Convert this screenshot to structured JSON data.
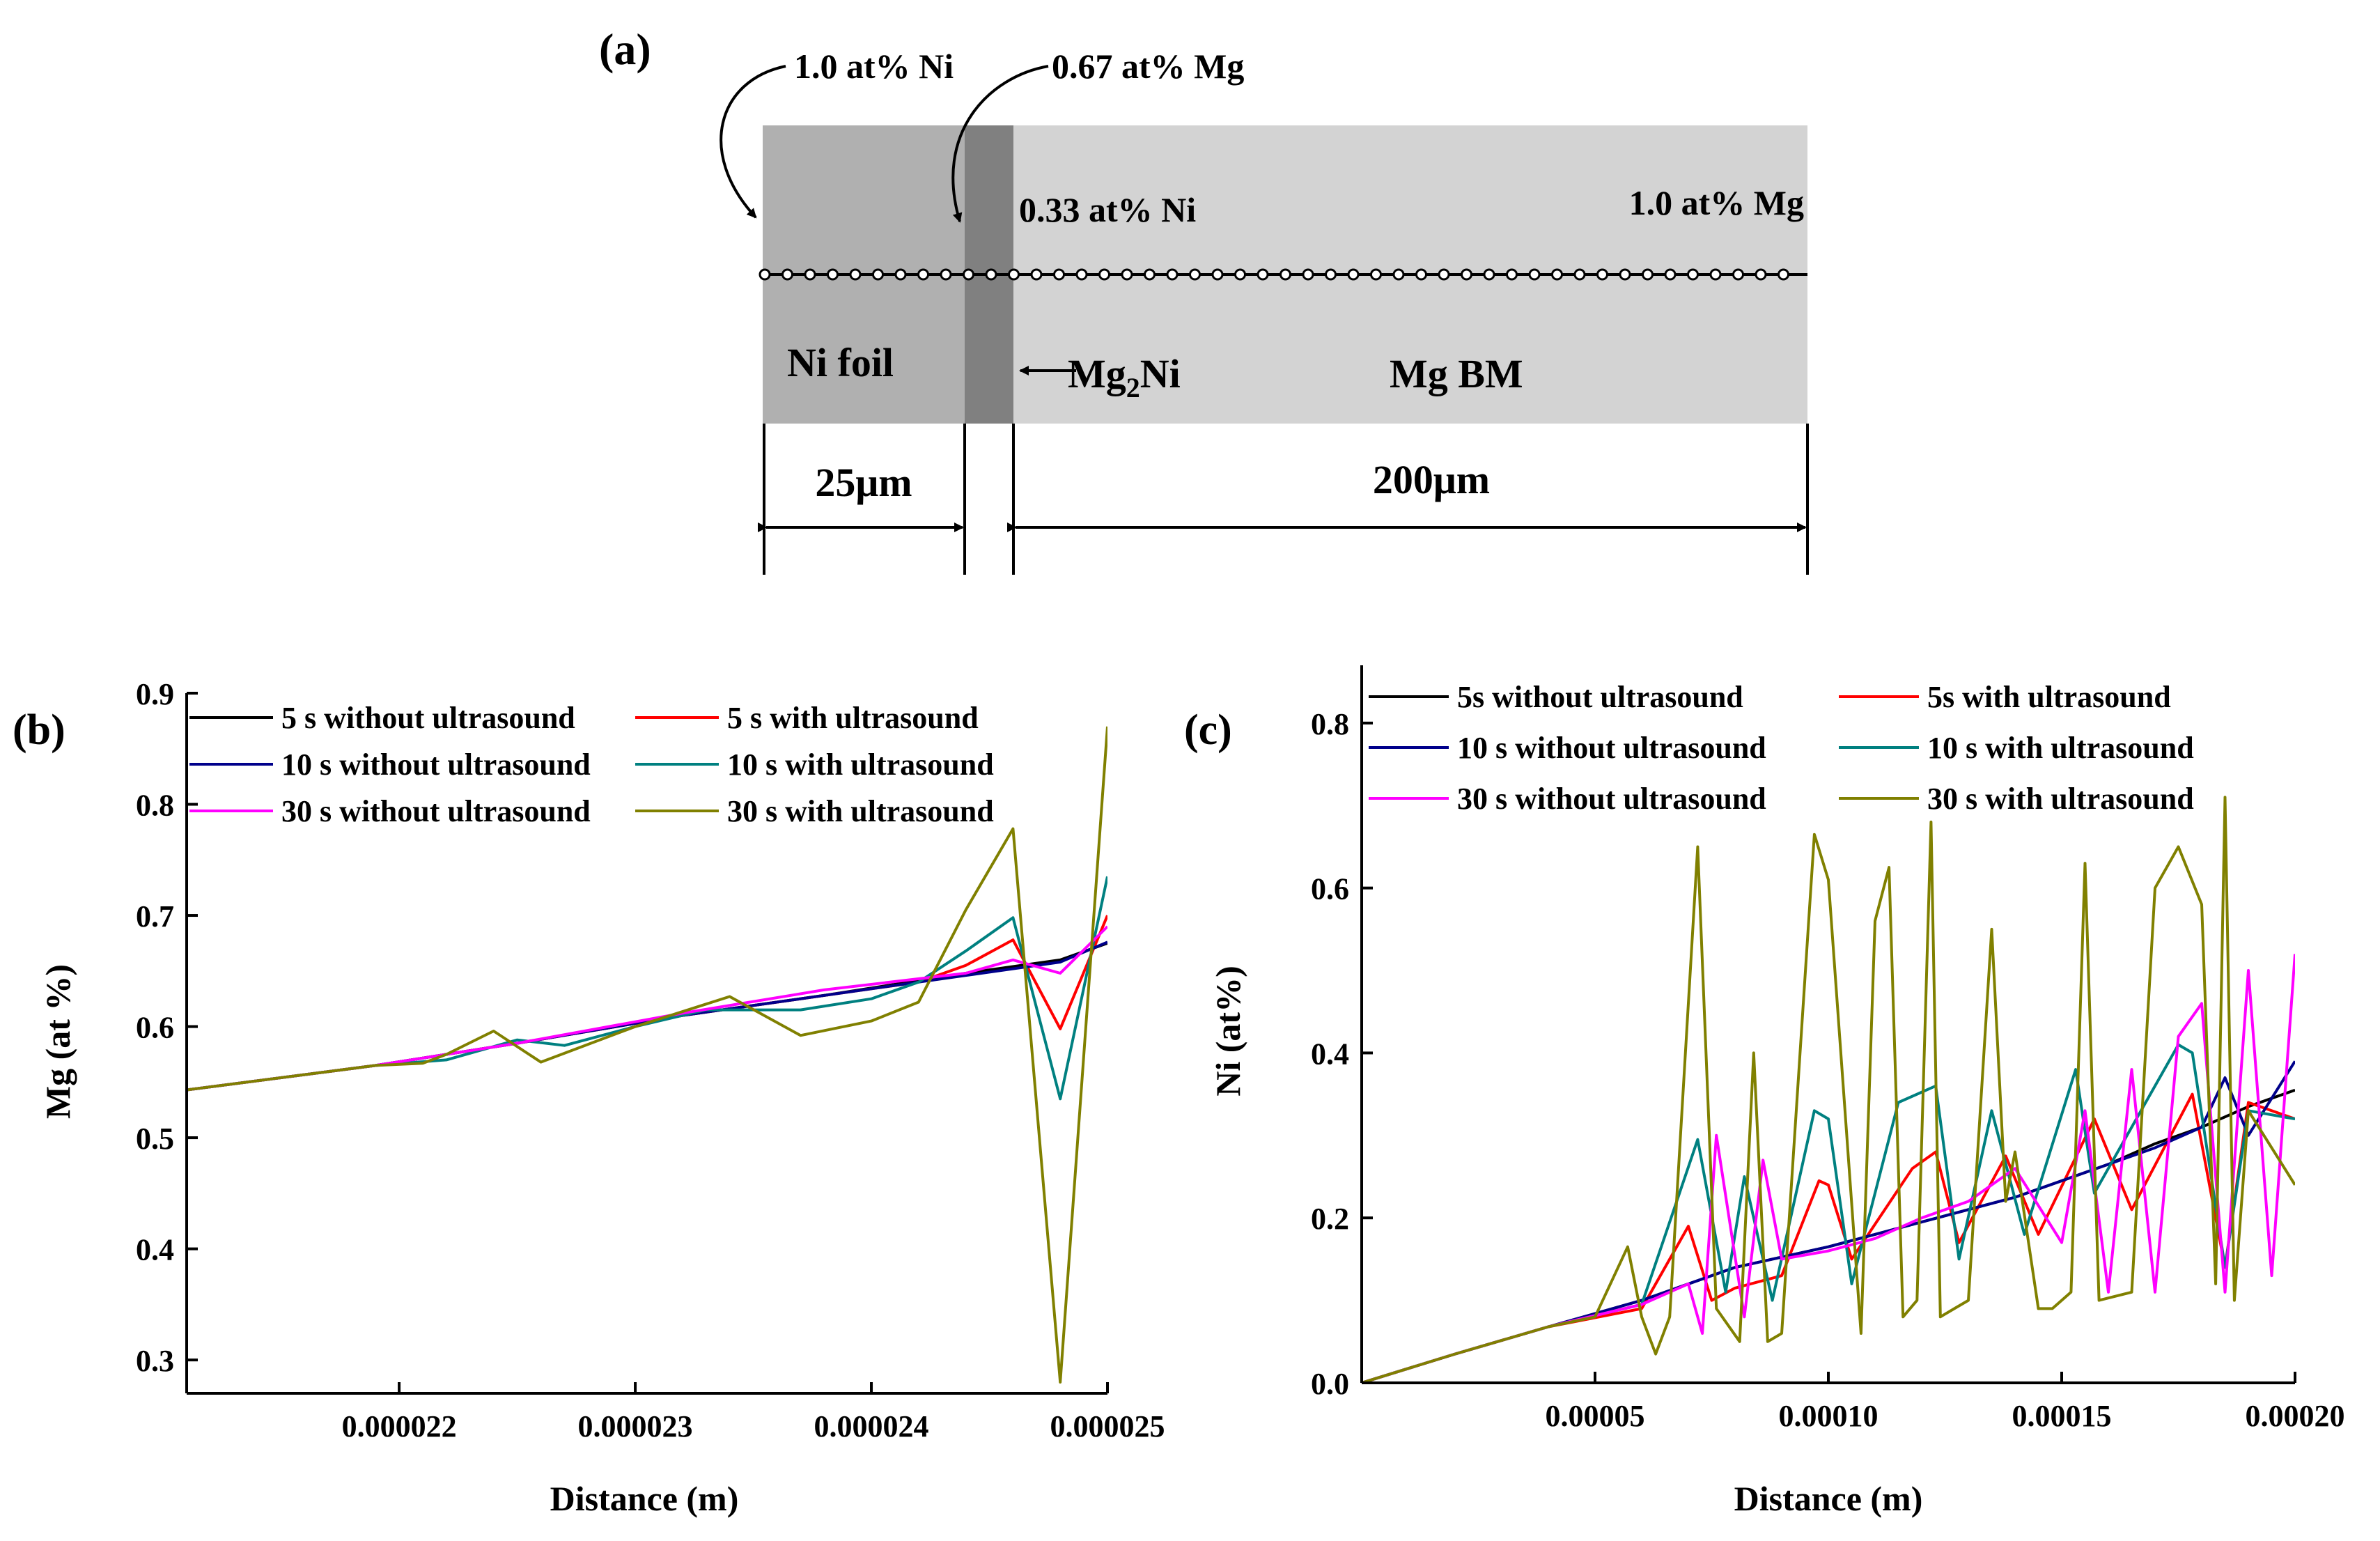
{
  "colors": {
    "black": "#000000",
    "red": "#ff0000",
    "navy": "#00008b",
    "teal": "#008080",
    "magenta": "#ff00ff",
    "olive": "#808000",
    "foil": "#b0b0b0",
    "layer": "#808080",
    "bm": "#d3d3d3"
  },
  "schematic": {
    "panel_label": "(a)",
    "label_ni_top": "1.0 at% Ni",
    "label_mg_top": "0.67 at% Mg",
    "label_ni_033": "0.33 at% Ni",
    "label_mg_10": "1.0 at% Mg",
    "ni_foil": "Ni foil",
    "mg2ni_prefix": "Mg",
    "mg2ni_sub": "2",
    "mg2ni_suffix": "Ni",
    "mg_bm": "Mg BM",
    "dim_25": "25μm",
    "dim_200": "200μm"
  },
  "chart_data": [
    {
      "panel_label": "(b)",
      "type": "line",
      "xlabel": "Distance (m)",
      "ylabel": "Mg (at %)",
      "xlim": [
        2.11e-05,
        2.5e-05
      ],
      "ylim": [
        0.27,
        0.9
      ],
      "xticks": [
        2.2e-05,
        2.3e-05,
        2.4e-05,
        2.5e-05
      ],
      "xtick_labels": [
        "0.000022",
        "0.000023",
        "0.000024",
        "0.000025"
      ],
      "yticks": [
        0.3,
        0.4,
        0.5,
        0.6,
        0.7,
        0.8,
        0.9
      ],
      "ytick_labels": [
        "0.3",
        "0.4",
        "0.5",
        "0.6",
        "0.7",
        "0.8",
        "0.9"
      ],
      "legend_columns": 2,
      "legend_placement": "top-left",
      "series": [
        {
          "name": "5 s without ultrasound",
          "color": "#000000",
          "x": [
            2.11e-05,
            2.19e-05,
            2.25e-05,
            2.32e-05,
            2.38e-05,
            2.44e-05,
            2.48e-05,
            2.5e-05
          ],
          "y": [
            0.543,
            0.565,
            0.585,
            0.61,
            0.628,
            0.648,
            0.66,
            0.675
          ]
        },
        {
          "name": "5 s with ultrasound",
          "color": "#ff0000",
          "x": [
            2.11e-05,
            2.19e-05,
            2.25e-05,
            2.32e-05,
            2.38e-05,
            2.42e-05,
            2.44e-05,
            2.46e-05,
            2.48e-05,
            2.5e-05
          ],
          "y": [
            0.543,
            0.565,
            0.585,
            0.61,
            0.628,
            0.64,
            0.655,
            0.678,
            0.598,
            0.7
          ]
        },
        {
          "name": "10 s without ultrasound",
          "color": "#00008b",
          "x": [
            2.11e-05,
            2.19e-05,
            2.25e-05,
            2.32e-05,
            2.38e-05,
            2.44e-05,
            2.48e-05,
            2.5e-05
          ],
          "y": [
            0.543,
            0.565,
            0.585,
            0.61,
            0.628,
            0.646,
            0.658,
            0.676
          ]
        },
        {
          "name": "10 s with ultrasound",
          "color": "#008080",
          "x": [
            2.11e-05,
            2.19e-05,
            2.22e-05,
            2.25e-05,
            2.27e-05,
            2.3e-05,
            2.33e-05,
            2.37e-05,
            2.4e-05,
            2.42e-05,
            2.44e-05,
            2.46e-05,
            2.48e-05,
            2.5e-05
          ],
          "y": [
            0.543,
            0.565,
            0.57,
            0.588,
            0.583,
            0.6,
            0.615,
            0.615,
            0.625,
            0.64,
            0.668,
            0.698,
            0.535,
            0.735
          ]
        },
        {
          "name": "30 s without ultrasound",
          "color": "#ff00ff",
          "x": [
            2.11e-05,
            2.19e-05,
            2.25e-05,
            2.32e-05,
            2.38e-05,
            2.44e-05,
            2.46e-05,
            2.48e-05,
            2.5e-05
          ],
          "y": [
            0.543,
            0.565,
            0.585,
            0.612,
            0.633,
            0.648,
            0.66,
            0.648,
            0.69
          ]
        },
        {
          "name": "30 s with ultrasound",
          "color": "#808000",
          "x": [
            2.11e-05,
            2.19e-05,
            2.21e-05,
            2.22e-05,
            2.24e-05,
            2.26e-05,
            2.3e-05,
            2.34e-05,
            2.37e-05,
            2.4e-05,
            2.42e-05,
            2.44e-05,
            2.46e-05,
            2.48e-05,
            2.5e-05
          ],
          "y": [
            0.543,
            0.565,
            0.567,
            0.575,
            0.596,
            0.568,
            0.6,
            0.627,
            0.592,
            0.605,
            0.622,
            0.705,
            0.778,
            0.28,
            0.87
          ]
        }
      ]
    },
    {
      "panel_label": "(c)",
      "type": "line",
      "xlabel": "Distance (m)",
      "ylabel": "Ni (at%)",
      "xlim": [
        0,
        0.0002
      ],
      "ylim": [
        0,
        0.87
      ],
      "xticks": [
        5e-05,
        0.0001,
        0.00015,
        0.0002
      ],
      "xtick_labels": [
        "0.00005",
        "0.00010",
        "0.00015",
        "0.00020"
      ],
      "yticks": [
        0.0,
        0.2,
        0.4,
        0.6,
        0.8
      ],
      "ytick_labels": [
        "0.0",
        "0.2",
        "0.4",
        "0.6",
        "0.8"
      ],
      "legend_columns": 2,
      "legend_placement": "top-left",
      "series": [
        {
          "name": "5s without ultrasound",
          "color": "#000000",
          "x": [
            0,
            2e-05,
            4e-05,
            6e-05,
            8e-05,
            0.0001,
            0.00012,
            0.00014,
            0.00016,
            0.00017,
            0.00018,
            0.00019,
            0.0002
          ],
          "y": [
            0,
            0.035,
            0.068,
            0.1,
            0.14,
            0.165,
            0.195,
            0.225,
            0.265,
            0.29,
            0.31,
            0.335,
            0.355
          ]
        },
        {
          "name": "5s with ultrasound",
          "color": "#ff0000",
          "x": [
            0,
            2e-05,
            4e-05,
            6e-05,
            7e-05,
            7.5e-05,
            8e-05,
            9e-05,
            9.8e-05,
            0.0001,
            0.000105,
            0.000118,
            0.000123,
            0.000128,
            0.000138,
            0.000145,
            0.000157,
            0.000165,
            0.000178,
            0.000185,
            0.00019,
            0.0002
          ],
          "y": [
            0,
            0.035,
            0.068,
            0.09,
            0.19,
            0.1,
            0.115,
            0.13,
            0.245,
            0.24,
            0.15,
            0.26,
            0.28,
            0.17,
            0.275,
            0.18,
            0.32,
            0.21,
            0.35,
            0.14,
            0.34,
            0.32
          ]
        },
        {
          "name": "10 s without ultrasound",
          "color": "#00008b",
          "x": [
            0,
            2e-05,
            4e-05,
            6e-05,
            8e-05,
            0.0001,
            0.00012,
            0.00014,
            0.00016,
            0.00017,
            0.00018,
            0.000185,
            0.00019,
            0.0002
          ],
          "y": [
            0,
            0.035,
            0.068,
            0.1,
            0.14,
            0.165,
            0.195,
            0.225,
            0.265,
            0.285,
            0.31,
            0.37,
            0.3,
            0.39
          ]
        },
        {
          "name": "10 s with ultrasound",
          "color": "#008080",
          "x": [
            0,
            2e-05,
            4e-05,
            6e-05,
            7.2e-05,
            7.8e-05,
            8.2e-05,
            8.8e-05,
            9.7e-05,
            0.0001,
            0.000105,
            0.000115,
            0.000123,
            0.000128,
            0.000135,
            0.000142,
            0.000153,
            0.000157,
            0.000175,
            0.000178,
            0.000185,
            0.00019,
            0.0002
          ],
          "y": [
            0,
            0.035,
            0.068,
            0.095,
            0.295,
            0.11,
            0.25,
            0.1,
            0.33,
            0.32,
            0.12,
            0.34,
            0.36,
            0.15,
            0.33,
            0.18,
            0.38,
            0.23,
            0.41,
            0.4,
            0.14,
            0.33,
            0.32
          ]
        },
        {
          "name": "30 s without ultrasound",
          "color": "#ff00ff",
          "x": [
            0,
            2e-05,
            4e-05,
            6e-05,
            7e-05,
            7.3e-05,
            7.6e-05,
            8.2e-05,
            8.6e-05,
            9e-05,
            0.0001,
            0.00011,
            0.00012,
            0.00013,
            0.00014,
            0.00015,
            0.000155,
            0.00016,
            0.000165,
            0.00017,
            0.000175,
            0.00018,
            0.000185,
            0.00019,
            0.000195,
            0.0002
          ],
          "y": [
            0,
            0.035,
            0.068,
            0.095,
            0.12,
            0.06,
            0.3,
            0.08,
            0.27,
            0.15,
            0.16,
            0.175,
            0.2,
            0.22,
            0.26,
            0.17,
            0.33,
            0.11,
            0.38,
            0.11,
            0.42,
            0.46,
            0.11,
            0.5,
            0.13,
            0.52
          ]
        },
        {
          "name": "30 s with ultrasound",
          "color": "#808000",
          "x": [
            0,
            2e-05,
            4e-05,
            5e-05,
            5.7e-05,
            6e-05,
            6.3e-05,
            6.6e-05,
            7.2e-05,
            7.6e-05,
            8.1e-05,
            8.4e-05,
            8.7e-05,
            9e-05,
            9.7e-05,
            0.0001,
            0.000107,
            0.00011,
            0.000113,
            0.000116,
            0.000119,
            0.000122,
            0.000124,
            0.000127,
            0.00013,
            0.000135,
            0.000138,
            0.00014,
            0.000145,
            0.000148,
            0.000152,
            0.000155,
            0.000158,
            0.000165,
            0.00017,
            0.000175,
            0.00018,
            0.000183,
            0.000185,
            0.000187,
            0.00019,
            0.0002
          ],
          "y": [
            0,
            0.035,
            0.068,
            0.08,
            0.165,
            0.08,
            0.035,
            0.08,
            0.65,
            0.09,
            0.05,
            0.4,
            0.05,
            0.06,
            0.665,
            0.61,
            0.06,
            0.56,
            0.625,
            0.08,
            0.1,
            0.68,
            0.08,
            0.09,
            0.1,
            0.55,
            0.22,
            0.28,
            0.09,
            0.09,
            0.11,
            0.63,
            0.1,
            0.11,
            0.6,
            0.65,
            0.58,
            0.12,
            0.71,
            0.1,
            0.33,
            0.24
          ]
        }
      ]
    }
  ]
}
